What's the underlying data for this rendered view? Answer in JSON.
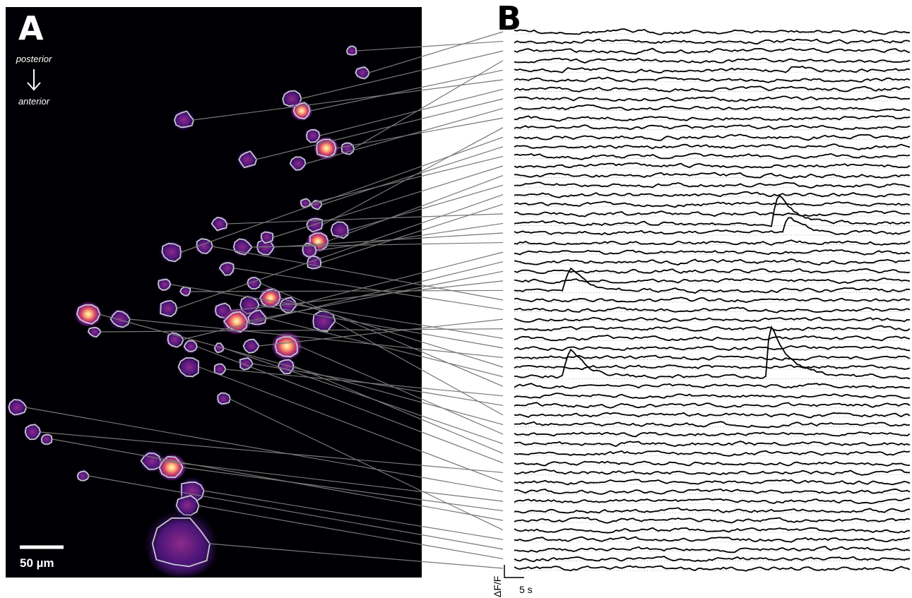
{
  "panel_a": {
    "label": "A",
    "orientation_top": "posterior",
    "orientation_bottom": "anterior",
    "scale_bar": "50 µm"
  },
  "panel_b": {
    "label": "B",
    "scale_y": "ΔF/F",
    "scale_x": "5 s"
  }
}
